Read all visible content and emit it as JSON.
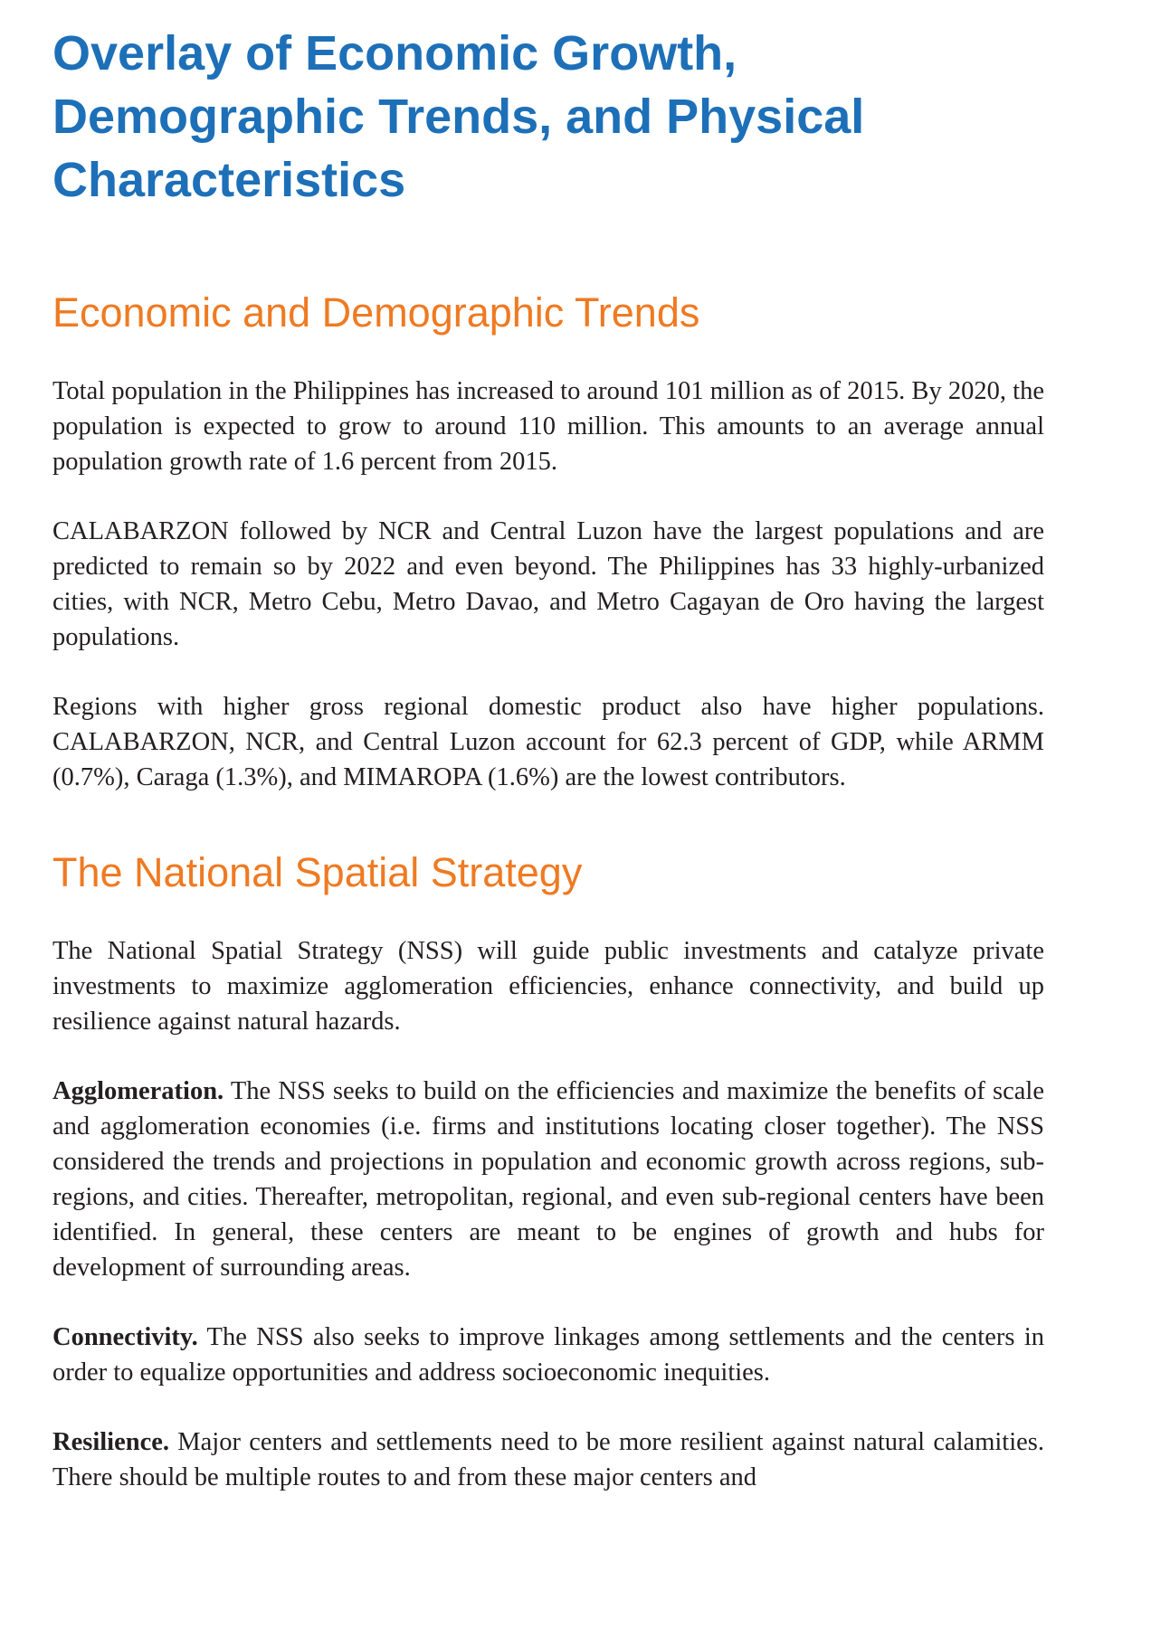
{
  "document": {
    "title": "Overlay of Economic Growth, Demographic Trends, and Physical Characteristics"
  },
  "sections": [
    {
      "heading": "Economic and Demographic Trends",
      "paragraphs": [
        {
          "lead": "",
          "text": "Total population in the Philippines has increased to around 101 million as of 2015. By 2020, the population is expected to grow to around 110 million. This amounts to an average annual population growth rate of 1.6 percent from 2015."
        },
        {
          "lead": "",
          "text": "CALABARZON followed by NCR and Central Luzon have the largest populations and are predicted to remain so by 2022 and even beyond. The Philippines has 33 highly-urbanized cities, with NCR, Metro Cebu, Metro Davao, and Metro Cagayan de Oro having the largest populations."
        },
        {
          "lead": "",
          "text": "Regions with higher gross regional domestic product also have higher populations. CALABARZON, NCR, and Central Luzon account for 62.3 percent of GDP, while ARMM (0.7%), Caraga (1.3%), and MIMAROPA (1.6%) are the lowest contributors."
        }
      ]
    },
    {
      "heading": "The National Spatial Strategy",
      "paragraphs": [
        {
          "lead": "",
          "text": "The National Spatial Strategy (NSS) will guide public investments and catalyze private investments to maximize agglomeration efficiencies, enhance connectivity, and build up resilience against natural hazards."
        },
        {
          "lead": "Agglomeration.",
          "text": " The NSS seeks to build on the efficiencies and maximize the benefits of scale and agglomeration economies (i.e. firms and institutions locating closer together). The NSS considered the trends and projections in population and economic growth across regions, sub-regions, and cities. Thereafter, metropolitan, regional, and even sub-regional centers have been identified. In general, these centers are meant to be engines of growth and hubs for development of surrounding areas."
        },
        {
          "lead": "Connectivity.",
          "text": " The NSS also seeks to improve linkages among settlements and the centers in order to equalize opportunities and address socioeconomic inequities."
        },
        {
          "lead": "Resilience.",
          "text": " Major centers and settlements need to be more resilient against natural calamities. There should be multiple routes to and from these major centers and"
        }
      ]
    }
  ]
}
